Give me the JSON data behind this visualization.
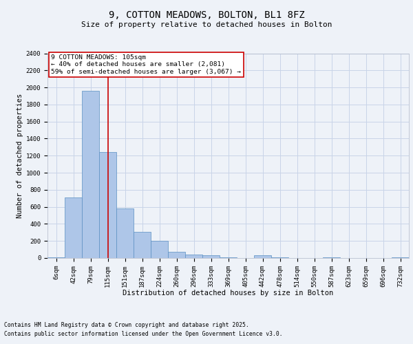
{
  "title1": "9, COTTON MEADOWS, BOLTON, BL1 8FZ",
  "title2": "Size of property relative to detached houses in Bolton",
  "xlabel": "Distribution of detached houses by size in Bolton",
  "ylabel": "Number of detached properties",
  "categories": [
    "6sqm",
    "42sqm",
    "79sqm",
    "115sqm",
    "151sqm",
    "187sqm",
    "224sqm",
    "260sqm",
    "296sqm",
    "333sqm",
    "369sqm",
    "405sqm",
    "442sqm",
    "478sqm",
    "514sqm",
    "550sqm",
    "587sqm",
    "623sqm",
    "659sqm",
    "696sqm",
    "732sqm"
  ],
  "values": [
    10,
    710,
    1960,
    1240,
    580,
    305,
    200,
    75,
    40,
    30,
    10,
    0,
    30,
    10,
    0,
    0,
    5,
    0,
    0,
    0,
    5
  ],
  "bar_color": "#aec6e8",
  "bar_edge_color": "#5a8fc2",
  "grid_color": "#c8d4e8",
  "background_color": "#eef2f8",
  "vline_x": 3.0,
  "vline_color": "#cc0000",
  "annotation_text": "9 COTTON MEADOWS: 105sqm\n← 40% of detached houses are smaller (2,081)\n59% of semi-detached houses are larger (3,067) →",
  "annotation_box_color": "#ffffff",
  "annotation_edge_color": "#cc0000",
  "ylim": [
    0,
    2400
  ],
  "yticks": [
    0,
    200,
    400,
    600,
    800,
    1000,
    1200,
    1400,
    1600,
    1800,
    2000,
    2200,
    2400
  ],
  "footer1": "Contains HM Land Registry data © Crown copyright and database right 2025.",
  "footer2": "Contains public sector information licensed under the Open Government Licence v3.0.",
  "title1_fontsize": 10,
  "title2_fontsize": 8,
  "tick_fontsize": 6.5,
  "ylabel_fontsize": 7.5,
  "xlabel_fontsize": 7.5,
  "annotation_fontsize": 6.8,
  "footer_fontsize": 5.8
}
